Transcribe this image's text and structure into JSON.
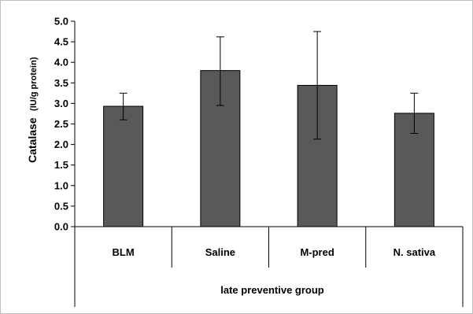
{
  "chart_data": {
    "type": "bar",
    "categories": [
      "BLM",
      "Saline",
      "M-pred",
      "N. sativa"
    ],
    "group_label": "late preventive group",
    "values": [
      2.93,
      3.8,
      3.44,
      2.76
    ],
    "error_upper": [
      3.25,
      4.62,
      4.75,
      3.25
    ],
    "error_lower": [
      2.6,
      2.95,
      2.13,
      2.27
    ],
    "ylabel": "Catalase",
    "ylabel_unit": "(IU/g protein)",
    "ylim": [
      0,
      5
    ],
    "yticks": [
      "0.0",
      "0.5",
      "1.0",
      "1.5",
      "2.0",
      "2.5",
      "3.0",
      "3.5",
      "4.0",
      "4.5",
      "5.0"
    ],
    "bar_color": "#595959",
    "grid": false
  }
}
